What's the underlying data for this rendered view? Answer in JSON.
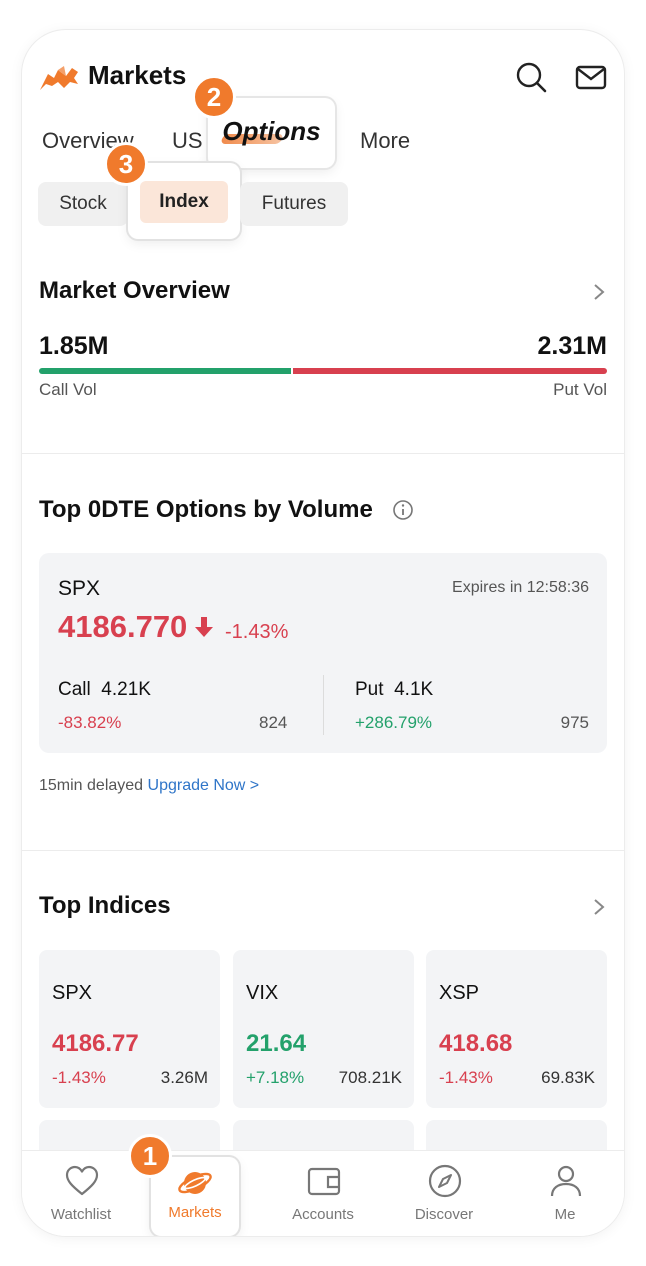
{
  "header": {
    "title": "Markets",
    "logo_icon": "bull-logo-icon",
    "brand_color": "#f07a2c",
    "search_icon": "search-icon",
    "mail_icon": "mail-icon"
  },
  "tabs": [
    {
      "label": "Overview",
      "active": false
    },
    {
      "label": "US",
      "active": false
    },
    {
      "label": "Options",
      "active": true
    },
    {
      "label": "More",
      "active": false
    }
  ],
  "subtabs": [
    {
      "label": "Stock",
      "active": false
    },
    {
      "label": "Index",
      "active": true
    },
    {
      "label": "Futures",
      "active": false
    }
  ],
  "badges": {
    "b1": "1",
    "b2": "2",
    "b3": "3"
  },
  "market_overview": {
    "title": "Market Overview",
    "call_vol_value": "1.85M",
    "put_vol_value": "2.31M",
    "call_vol_label": "Call Vol",
    "put_vol_label": "Put Vol",
    "call_color": "#23a16b",
    "put_color": "#d8404f"
  },
  "top_0dte": {
    "title": "Top 0DTE Options by Volume",
    "symbol": "SPX",
    "expires": "Expires in 12:58:36",
    "price": "4186.770",
    "change_pct": "-1.43%",
    "call_label": "Call",
    "call_volume": "4.21K",
    "call_change": "-83.82%",
    "call_count": "824",
    "put_label": "Put",
    "put_volume": "4.1K",
    "put_change": "+286.79%",
    "put_count": "975"
  },
  "delay_notice": {
    "text": "15min delayed",
    "link": "Upgrade Now >"
  },
  "top_indices": {
    "title": "Top Indices",
    "items": [
      {
        "symbol": "SPX",
        "price": "4186.77",
        "change": "-1.43%",
        "volume": "3.26M",
        "direction": "down"
      },
      {
        "symbol": "VIX",
        "price": "21.64",
        "change": "+7.18%",
        "volume": "708.21K",
        "direction": "up"
      },
      {
        "symbol": "XSP",
        "price": "418.68",
        "change": "-1.43%",
        "volume": "69.83K",
        "direction": "down"
      }
    ]
  },
  "bottom_nav": [
    {
      "label": "Watchlist",
      "icon": "heart-icon"
    },
    {
      "label": "Markets",
      "icon": "planet-icon",
      "active": true
    },
    {
      "label": "Accounts",
      "icon": "wallet-icon"
    },
    {
      "label": "Discover",
      "icon": "compass-icon"
    },
    {
      "label": "Me",
      "icon": "person-icon"
    }
  ]
}
